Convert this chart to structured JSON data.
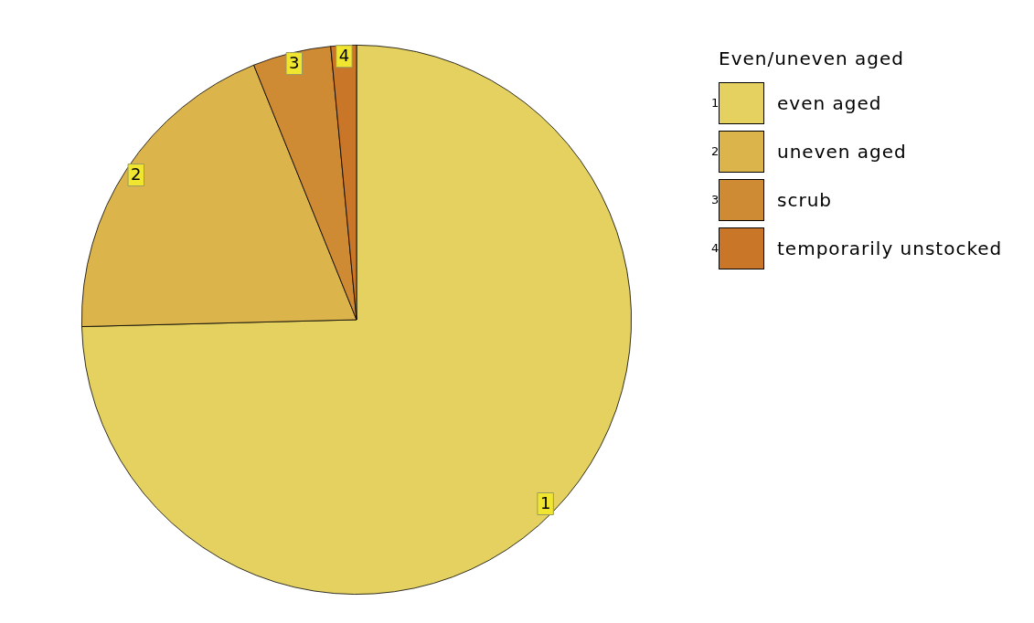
{
  "chart_data": {
    "type": "pie",
    "legend_title": "Even/uneven aged",
    "legend": "top right",
    "categories": [
      "even aged",
      "uneven aged",
      "scrub",
      "temporarily unstocked"
    ],
    "values": [
      74.6,
      19.3,
      4.6,
      1.5
    ],
    "colors": [
      "#e5d160",
      "#dcb44c",
      "#cf8b34",
      "#c97628"
    ],
    "annotations": [
      {
        "text": "1",
        "x": "even aged"
      },
      {
        "text": "2",
        "x": "uneven aged"
      },
      {
        "text": "3",
        "x": "scrub"
      },
      {
        "text": "4",
        "x": "temporarily unstocked"
      }
    ]
  }
}
